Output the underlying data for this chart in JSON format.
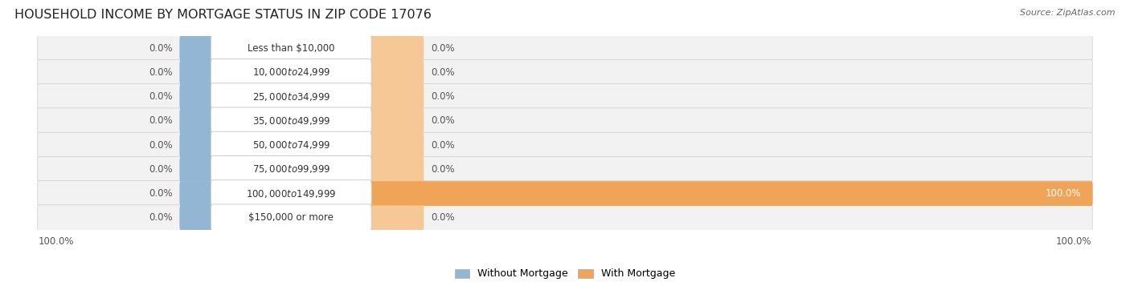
{
  "title": "HOUSEHOLD INCOME BY MORTGAGE STATUS IN ZIP CODE 17076",
  "source": "Source: ZipAtlas.com",
  "categories": [
    "Less than $10,000",
    "$10,000 to $24,999",
    "$25,000 to $34,999",
    "$35,000 to $49,999",
    "$50,000 to $74,999",
    "$75,000 to $99,999",
    "$100,000 to $149,999",
    "$150,000 or more"
  ],
  "without_mortgage": [
    0.0,
    0.0,
    0.0,
    0.0,
    0.0,
    0.0,
    0.0,
    0.0
  ],
  "with_mortgage": [
    0.0,
    0.0,
    0.0,
    0.0,
    0.0,
    0.0,
    100.0,
    0.0
  ],
  "color_without": "#93b6d4",
  "color_with": "#f0a458",
  "color_with_zero": "#f5c896",
  "background_row": "#f2f2f2",
  "background_fig": "#ffffff",
  "label_fontsize": 8.5,
  "title_fontsize": 11.5,
  "legend_fontsize": 9,
  "axis_label_fontsize": 8.5,
  "source_fontsize": 8
}
